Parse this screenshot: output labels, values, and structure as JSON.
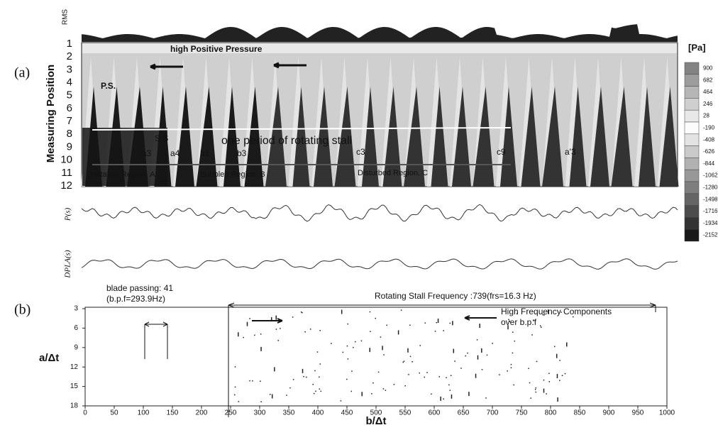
{
  "panel_a": {
    "label": "(a)",
    "rms_label": "RMS",
    "y_axis_label": "Measuring Position",
    "positions": [
      "1",
      "2",
      "3",
      "4",
      "5",
      "6",
      "7",
      "8",
      "9",
      "10",
      "11",
      "12"
    ],
    "unit": "[Pa]",
    "colorbar": [
      900,
      682,
      464,
      246,
      28,
      -190,
      -408,
      -626,
      -844,
      -1062,
      -1280,
      -1498,
      -1716,
      -1934,
      -2152
    ],
    "annotations": {
      "high_pressure": "high Positive Pressure",
      "ps": "P.S.",
      "ss": "S.S",
      "period": "one period of rotating stall",
      "a3": "a3",
      "a4": "a4",
      "b1": "b1",
      "b3": "b3",
      "c3": "c3",
      "c9": "c9",
      "a_prime_3": "a'3",
      "region_a": "Unstalled Region, A",
      "region_b": "Bubbled Region, B",
      "region_c": "Disturbed Region, C"
    },
    "trace_labels": [
      "P(s)",
      "DPLA(s)"
    ]
  },
  "panel_b": {
    "label": "(b)",
    "y_axis_label": "a/Δt",
    "x_axis_label": "b/Δt",
    "yticks": [
      3,
      6,
      9,
      12,
      15,
      18
    ],
    "xticks": [
      0,
      50,
      100,
      150,
      200,
      250,
      300,
      350,
      400,
      450,
      500,
      550,
      600,
      650,
      700,
      750,
      800,
      850,
      900,
      950,
      1000
    ],
    "annotations": {
      "blade_passing": "blade passing: 41",
      "bpf": "(b.p.f=293.9Hz)",
      "rotating_stall": "Rotating Stall Frequency :739(frs=16.3 Hz)",
      "high_freq_1": "High Frequency Components",
      "high_freq_2": "over b.p.f"
    }
  }
}
